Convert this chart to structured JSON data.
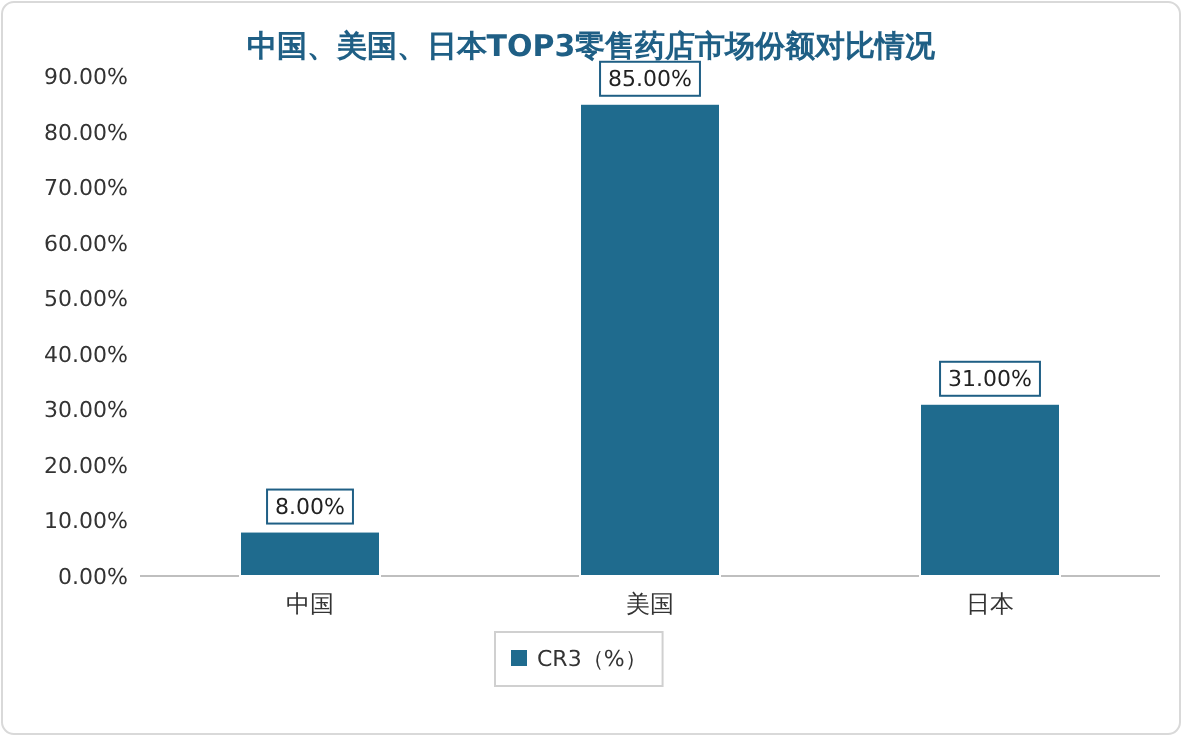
{
  "chart_data": {
    "type": "bar",
    "title": "中国、美国、日本TOP3零售药店市场份额对比情况",
    "categories": [
      "中国",
      "美国",
      "日本"
    ],
    "series": [
      {
        "name": "CR3（%）",
        "color": "#1f6b8e",
        "values": [
          8,
          85,
          31
        ],
        "value_labels": [
          "8.00%",
          "85.00%",
          "31.00%"
        ]
      }
    ],
    "ylim": [
      0,
      90
    ],
    "yticks": [
      {
        "value": 0,
        "label": "0.00%"
      },
      {
        "value": 10,
        "label": "10.00%"
      },
      {
        "value": 20,
        "label": "20.00%"
      },
      {
        "value": 30,
        "label": "30.00%"
      },
      {
        "value": 40,
        "label": "40.00%"
      },
      {
        "value": 50,
        "label": "50.00%"
      },
      {
        "value": 60,
        "label": "60.00%"
      },
      {
        "value": 70,
        "label": "70.00%"
      },
      {
        "value": 80,
        "label": "80.00%"
      },
      {
        "value": 90,
        "label": "90.00%"
      }
    ],
    "legend": "bottom"
  }
}
